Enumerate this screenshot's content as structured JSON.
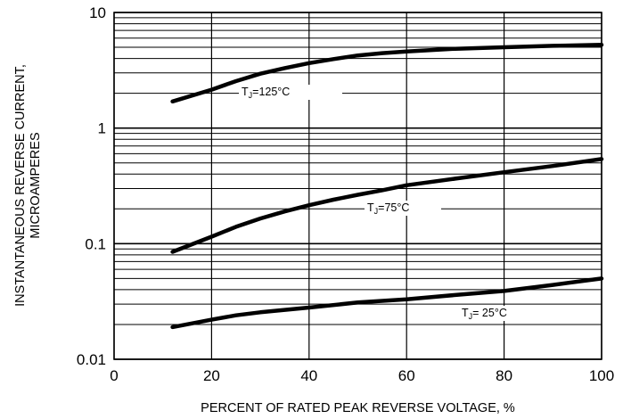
{
  "chart_data": {
    "type": "line",
    "title": "",
    "xlabel": "PERCENT OF RATED PEAK REVERSE VOLTAGE, %",
    "ylabel_lines": [
      "INSTANTANEOUS REVERSE CURRENT,",
      "MICROAMPERES"
    ],
    "xlim": [
      0,
      100
    ],
    "ylim": [
      0.01,
      10
    ],
    "yscale": "log",
    "grid": true,
    "x_ticks": [
      0,
      20,
      40,
      60,
      80,
      100
    ],
    "x_tick_labels": [
      "0",
      "20",
      "40",
      "60",
      "80",
      "100"
    ],
    "y_ticks": [
      0.01,
      0.1,
      1,
      10
    ],
    "y_tick_labels": [
      "0.01",
      "0.1",
      "1",
      "10"
    ],
    "series": [
      {
        "name": "TJ=125°C",
        "label_prefix": "T",
        "label_sub": "J",
        "label_suffix": "=125°C",
        "x": [
          12,
          20,
          25,
          30,
          35,
          40,
          45,
          50,
          55,
          60,
          70,
          80,
          90,
          100
        ],
        "y": [
          1.7,
          2.15,
          2.55,
          2.95,
          3.3,
          3.65,
          3.95,
          4.25,
          4.45,
          4.6,
          4.85,
          5.0,
          5.15,
          5.25
        ]
      },
      {
        "name": "TJ=75°C",
        "label_prefix": "T",
        "label_sub": "J",
        "label_suffix": "=75°C",
        "x": [
          12,
          20,
          25,
          30,
          35,
          40,
          45,
          50,
          55,
          60,
          70,
          80,
          90,
          100
        ],
        "y": [
          0.085,
          0.115,
          0.14,
          0.165,
          0.19,
          0.215,
          0.24,
          0.265,
          0.29,
          0.32,
          0.365,
          0.415,
          0.47,
          0.54
        ]
      },
      {
        "name": "TJ= 25°C",
        "label_prefix": "T",
        "label_sub": "J",
        "label_suffix": "= 25°C",
        "x": [
          12,
          20,
          25,
          30,
          40,
          50,
          60,
          70,
          80,
          90,
          100
        ],
        "y": [
          0.019,
          0.022,
          0.024,
          0.0255,
          0.028,
          0.031,
          0.033,
          0.036,
          0.039,
          0.044,
          0.05
        ]
      }
    ]
  }
}
